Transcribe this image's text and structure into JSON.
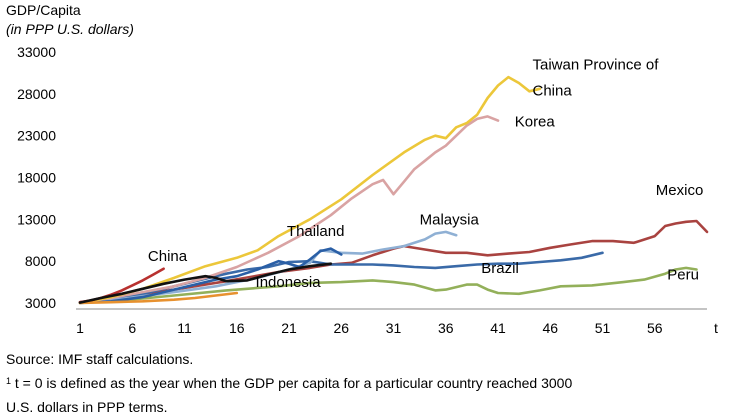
{
  "chart_data": {
    "type": "line",
    "ylabel": "GDP/Capita",
    "ylabel_sub": "(in PPP U.S. dollars)",
    "xlabel": "t",
    "xlim": [
      1,
      61
    ],
    "ylim": [
      3000,
      33000
    ],
    "y_ticks": [
      3000,
      8000,
      13000,
      18000,
      23000,
      28000,
      33000
    ],
    "x_ticks": [
      1,
      6,
      11,
      16,
      21,
      26,
      31,
      36,
      41,
      46,
      51,
      56
    ],
    "grid": false,
    "legend": "inline labels",
    "series": [
      {
        "name": "Peru",
        "color": "#93b05a",
        "points": [
          [
            1,
            3050
          ],
          [
            5,
            3300
          ],
          [
            10,
            3900
          ],
          [
            15,
            4500
          ],
          [
            20,
            5000
          ],
          [
            23,
            5400
          ],
          [
            26,
            5500
          ],
          [
            29,
            5700
          ],
          [
            31,
            5500
          ],
          [
            33,
            5200
          ],
          [
            35,
            4500
          ],
          [
            36,
            4600
          ],
          [
            38,
            5200
          ],
          [
            39,
            5200
          ],
          [
            40,
            4600
          ],
          [
            41,
            4200
          ],
          [
            43,
            4100
          ],
          [
            45,
            4500
          ],
          [
            47,
            5000
          ],
          [
            50,
            5100
          ],
          [
            53,
            5500
          ],
          [
            55,
            5800
          ],
          [
            57,
            6500
          ],
          [
            58,
            7000
          ],
          [
            59,
            7200
          ],
          [
            60,
            7000
          ]
        ]
      },
      {
        "name": "Mexico",
        "color": "#a94340",
        "points": [
          [
            1,
            3100
          ],
          [
            5,
            3700
          ],
          [
            10,
            4600
          ],
          [
            15,
            5600
          ],
          [
            20,
            6700
          ],
          [
            23,
            7200
          ],
          [
            25,
            7600
          ],
          [
            27,
            7800
          ],
          [
            29,
            8700
          ],
          [
            31,
            9500
          ],
          [
            32,
            9800
          ],
          [
            34,
            9400
          ],
          [
            36,
            9000
          ],
          [
            38,
            9000
          ],
          [
            40,
            8700
          ],
          [
            42,
            8900
          ],
          [
            44,
            9100
          ],
          [
            46,
            9600
          ],
          [
            48,
            10000
          ],
          [
            50,
            10400
          ],
          [
            52,
            10400
          ],
          [
            54,
            10200
          ],
          [
            56,
            11000
          ],
          [
            57,
            12200
          ],
          [
            58,
            12500
          ],
          [
            59,
            12700
          ],
          [
            60,
            12800
          ],
          [
            61,
            11500
          ]
        ]
      },
      {
        "name": "Brazil",
        "color": "#3a6aa8",
        "points": [
          [
            1,
            3050
          ],
          [
            4,
            3400
          ],
          [
            7,
            4100
          ],
          [
            10,
            5000
          ],
          [
            13,
            5900
          ],
          [
            15,
            6500
          ],
          [
            17,
            7000
          ],
          [
            19,
            7300
          ],
          [
            21,
            7900
          ],
          [
            23,
            8000
          ],
          [
            25,
            7600
          ],
          [
            27,
            7600
          ],
          [
            29,
            7600
          ],
          [
            31,
            7500
          ],
          [
            33,
            7300
          ],
          [
            35,
            7200
          ],
          [
            37,
            7400
          ],
          [
            39,
            7600
          ],
          [
            41,
            7700
          ],
          [
            43,
            7700
          ],
          [
            45,
            7900
          ],
          [
            47,
            8100
          ],
          [
            49,
            8400
          ],
          [
            51,
            9000
          ]
        ]
      },
      {
        "name": "Malaysia",
        "color": "#8fb0d4",
        "points": [
          [
            1,
            3050
          ],
          [
            5,
            3500
          ],
          [
            10,
            4300
          ],
          [
            14,
            5000
          ],
          [
            18,
            6000
          ],
          [
            21,
            7000
          ],
          [
            23,
            7800
          ],
          [
            24,
            9300
          ],
          [
            26,
            9000
          ],
          [
            28,
            8900
          ],
          [
            30,
            9400
          ],
          [
            32,
            9800
          ],
          [
            34,
            10600
          ],
          [
            35,
            11300
          ],
          [
            36,
            11500
          ],
          [
            37,
            11100
          ]
        ]
      },
      {
        "name": "Thailand",
        "color": "#2a5fa6",
        "points": [
          [
            1,
            3000
          ],
          [
            4,
            3200
          ],
          [
            7,
            3700
          ],
          [
            10,
            4600
          ],
          [
            12,
            5200
          ],
          [
            14,
            5800
          ],
          [
            16,
            6200
          ],
          [
            18,
            7000
          ],
          [
            20,
            8000
          ],
          [
            21,
            7700
          ],
          [
            22,
            7300
          ],
          [
            23,
            8200
          ],
          [
            24,
            9200
          ],
          [
            25,
            9500
          ],
          [
            26,
            8800
          ]
        ]
      },
      {
        "name": "Korea",
        "color": "#d9a3a3",
        "points": [
          [
            1,
            3050
          ],
          [
            4,
            3600
          ],
          [
            7,
            4300
          ],
          [
            10,
            5000
          ],
          [
            13,
            6000
          ],
          [
            16,
            7300
          ],
          [
            19,
            9000
          ],
          [
            22,
            11000
          ],
          [
            25,
            13500
          ],
          [
            27,
            15500
          ],
          [
            29,
            17200
          ],
          [
            30,
            17700
          ],
          [
            31,
            16000
          ],
          [
            32,
            17500
          ],
          [
            33,
            19000
          ],
          [
            34,
            20000
          ],
          [
            35,
            21000
          ],
          [
            36,
            21800
          ],
          [
            37,
            23000
          ],
          [
            38,
            24200
          ],
          [
            39,
            25000
          ],
          [
            40,
            25300
          ],
          [
            41,
            24800
          ]
        ]
      },
      {
        "name": "Taiwan Province of China",
        "color": "#ecc73a",
        "points": [
          [
            1,
            3000
          ],
          [
            4,
            3700
          ],
          [
            7,
            4700
          ],
          [
            10,
            6000
          ],
          [
            13,
            7400
          ],
          [
            16,
            8400
          ],
          [
            18,
            9300
          ],
          [
            20,
            11000
          ],
          [
            23,
            13000
          ],
          [
            26,
            15400
          ],
          [
            29,
            18300
          ],
          [
            32,
            21000
          ],
          [
            34,
            22500
          ],
          [
            35,
            23000
          ],
          [
            36,
            22700
          ],
          [
            37,
            24000
          ],
          [
            38,
            24500
          ],
          [
            39,
            25500
          ],
          [
            40,
            27500
          ],
          [
            41,
            29000
          ],
          [
            42,
            30000
          ],
          [
            43,
            29300
          ],
          [
            44,
            28300
          ],
          [
            45,
            28600
          ]
        ]
      },
      {
        "name": "China",
        "color": "#b8312f",
        "points": [
          [
            1,
            3100
          ],
          [
            2,
            3300
          ],
          [
            3,
            3600
          ],
          [
            4,
            4000
          ],
          [
            5,
            4500
          ],
          [
            6,
            5100
          ],
          [
            7,
            5700
          ],
          [
            8,
            6400
          ],
          [
            9,
            7100
          ]
        ]
      },
      {
        "name": "Indonesia",
        "color": "#e7912f",
        "points": [
          [
            1,
            3000
          ],
          [
            4,
            3100
          ],
          [
            7,
            3200
          ],
          [
            10,
            3400
          ],
          [
            12,
            3600
          ],
          [
            14,
            3900
          ],
          [
            16,
            4200
          ]
        ]
      },
      {
        "name": "",
        "color": "#111111",
        "points": [
          [
            1,
            3050
          ],
          [
            3,
            3600
          ],
          [
            5,
            4100
          ],
          [
            7,
            4700
          ],
          [
            9,
            5300
          ],
          [
            11,
            5800
          ],
          [
            13,
            6200
          ],
          [
            14,
            6000
          ],
          [
            15,
            5600
          ],
          [
            17,
            5700
          ],
          [
            19,
            6400
          ],
          [
            21,
            7000
          ],
          [
            23,
            7400
          ],
          [
            25,
            7700
          ]
        ]
      }
    ],
    "labels": [
      {
        "text": "Taiwan Province of",
        "x": 44.3,
        "y": 30900
      },
      {
        "text": "China",
        "x": 44.3,
        "y": 27800
      },
      {
        "text": "Korea",
        "x": 42.6,
        "y": 24100
      },
      {
        "text": "Mexico",
        "x": 56.1,
        "y": 15900
      },
      {
        "text": "Malaysia",
        "x": 33.5,
        "y": 12400
      },
      {
        "text": "Thailand",
        "x": 20.8,
        "y": 11000
      },
      {
        "text": "China",
        "x": 7.5,
        "y": 8000
      },
      {
        "text": "Brazil",
        "x": 39.4,
        "y": 6600
      },
      {
        "text": "Indonesia",
        "x": 17.8,
        "y": 4900
      },
      {
        "text": "Peru",
        "x": 57.2,
        "y": 5800
      }
    ]
  },
  "notes": {
    "source": "Source: IMF staff calculations.",
    "footnote_mark": "1",
    "footnote_line1": " t = 0 is defined as the year when the GDP per capita for a particular country reached 3000",
    "footnote_line2": "U.S. dollars in PPP terms."
  }
}
